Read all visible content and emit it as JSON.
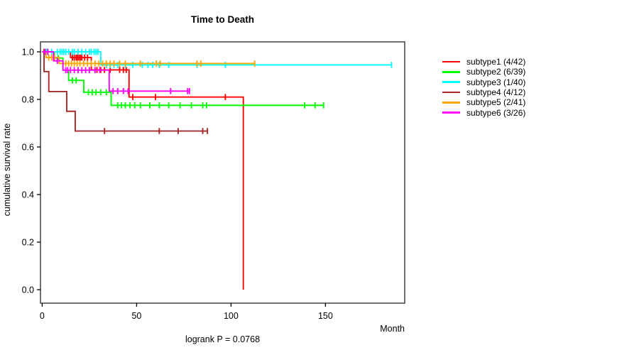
{
  "chart_data": {
    "type": "line",
    "subtype": "kaplan-meier-survival-steps",
    "title": "Time to Death",
    "xlabel": "Month",
    "ylabel": "cumulative survival rate",
    "annotation": "logrank P = 0.0768",
    "xlim": [
      0,
      192
    ],
    "ylim": [
      0.0,
      1.0
    ],
    "x_ticks": [
      0,
      50,
      100,
      150
    ],
    "y_ticks": [
      0.0,
      0.2,
      0.4,
      0.6,
      0.8,
      1.0
    ],
    "grid": false,
    "legend_position": "right-outside",
    "axis_color": "#4d4d4d",
    "series": [
      {
        "name": "subtype1",
        "legend_label": "subtype1 (4/42)",
        "color": "#FF0000",
        "deaths": 4,
        "n": 42,
        "steps": [
          [
            0,
            1.0
          ],
          [
            15,
            0.976
          ],
          [
            26,
            0.924
          ],
          [
            46,
            0.81
          ],
          [
            106.5,
            0.0
          ]
        ],
        "end_time": 106.5,
        "censor_times": [
          1,
          2.5,
          16,
          17,
          18,
          18.7,
          19.5,
          20.3,
          21,
          22.5,
          24,
          29,
          31,
          33,
          36,
          41,
          43,
          44.5,
          48,
          60,
          97
        ]
      },
      {
        "name": "subtype2",
        "legend_label": "subtype2 (6/39)",
        "color": "#00FF00",
        "deaths": 6,
        "n": 39,
        "steps": [
          [
            0,
            1.0
          ],
          [
            6.5,
            0.974
          ],
          [
            11,
            0.923
          ],
          [
            14,
            0.88
          ],
          [
            22,
            0.83
          ],
          [
            36.5,
            0.775
          ]
        ],
        "end_time": 149,
        "censor_times": [
          2.5,
          8.5,
          16,
          18,
          24.5,
          26.5,
          28.5,
          31,
          34,
          40,
          42,
          44,
          46.5,
          49,
          52,
          57,
          62,
          67,
          73,
          79,
          85,
          87,
          139,
          144.5,
          149
        ]
      },
      {
        "name": "subtype3",
        "legend_label": "subtype3 (1/40)",
        "color": "#00FFFF",
        "deaths": 1,
        "n": 40,
        "steps": [
          [
            0,
            1.0
          ],
          [
            31,
            0.945
          ]
        ],
        "end_time": 185,
        "censor_times": [
          1.5,
          2.2,
          3,
          5,
          8,
          9.5,
          10.5,
          11.5,
          12.5,
          14,
          16,
          17,
          19,
          21,
          23,
          25,
          26,
          27.5,
          28.5,
          29.5,
          34,
          36,
          38,
          40,
          44,
          48,
          53,
          56,
          58.5,
          62,
          67,
          82,
          97,
          185
        ]
      },
      {
        "name": "subtype4",
        "legend_label": "subtype4 (4/12)",
        "color": "#A52A2A",
        "deaths": 4,
        "n": 12,
        "steps": [
          [
            0,
            1.0
          ],
          [
            1,
            0.917
          ],
          [
            3.5,
            0.833
          ],
          [
            13,
            0.75
          ],
          [
            17.5,
            0.667
          ]
        ],
        "end_time": 87.5,
        "censor_times": [
          33,
          62,
          72,
          85,
          87.5
        ]
      },
      {
        "name": "subtype5",
        "legend_label": "subtype5 (2/41)",
        "color": "#FFA500",
        "deaths": 2,
        "n": 41,
        "steps": [
          [
            0,
            1.0
          ],
          [
            2,
            0.976
          ],
          [
            9,
            0.951
          ]
        ],
        "end_time": 112.5,
        "censor_times": [
          3.5,
          5,
          6.5,
          11,
          12.5,
          14,
          15.5,
          17,
          18.5,
          20,
          22,
          24,
          26,
          28,
          30,
          32,
          34,
          36,
          38,
          41,
          44,
          52,
          60.5,
          62.5,
          82,
          84,
          112.5
        ]
      },
      {
        "name": "subtype6",
        "legend_label": "subtype6 (3/26)",
        "color": "#FF00FF",
        "deaths": 3,
        "n": 26,
        "steps": [
          [
            0,
            1.0
          ],
          [
            6,
            0.962
          ],
          [
            11,
            0.923
          ],
          [
            35.5,
            0.835
          ]
        ],
        "end_time": 78,
        "censor_times": [
          1.5,
          3,
          8,
          12.5,
          13.5,
          15,
          17,
          19,
          21,
          23,
          25,
          28,
          30.5,
          37.5,
          40,
          43,
          45.5,
          68,
          77,
          78
        ]
      }
    ]
  }
}
